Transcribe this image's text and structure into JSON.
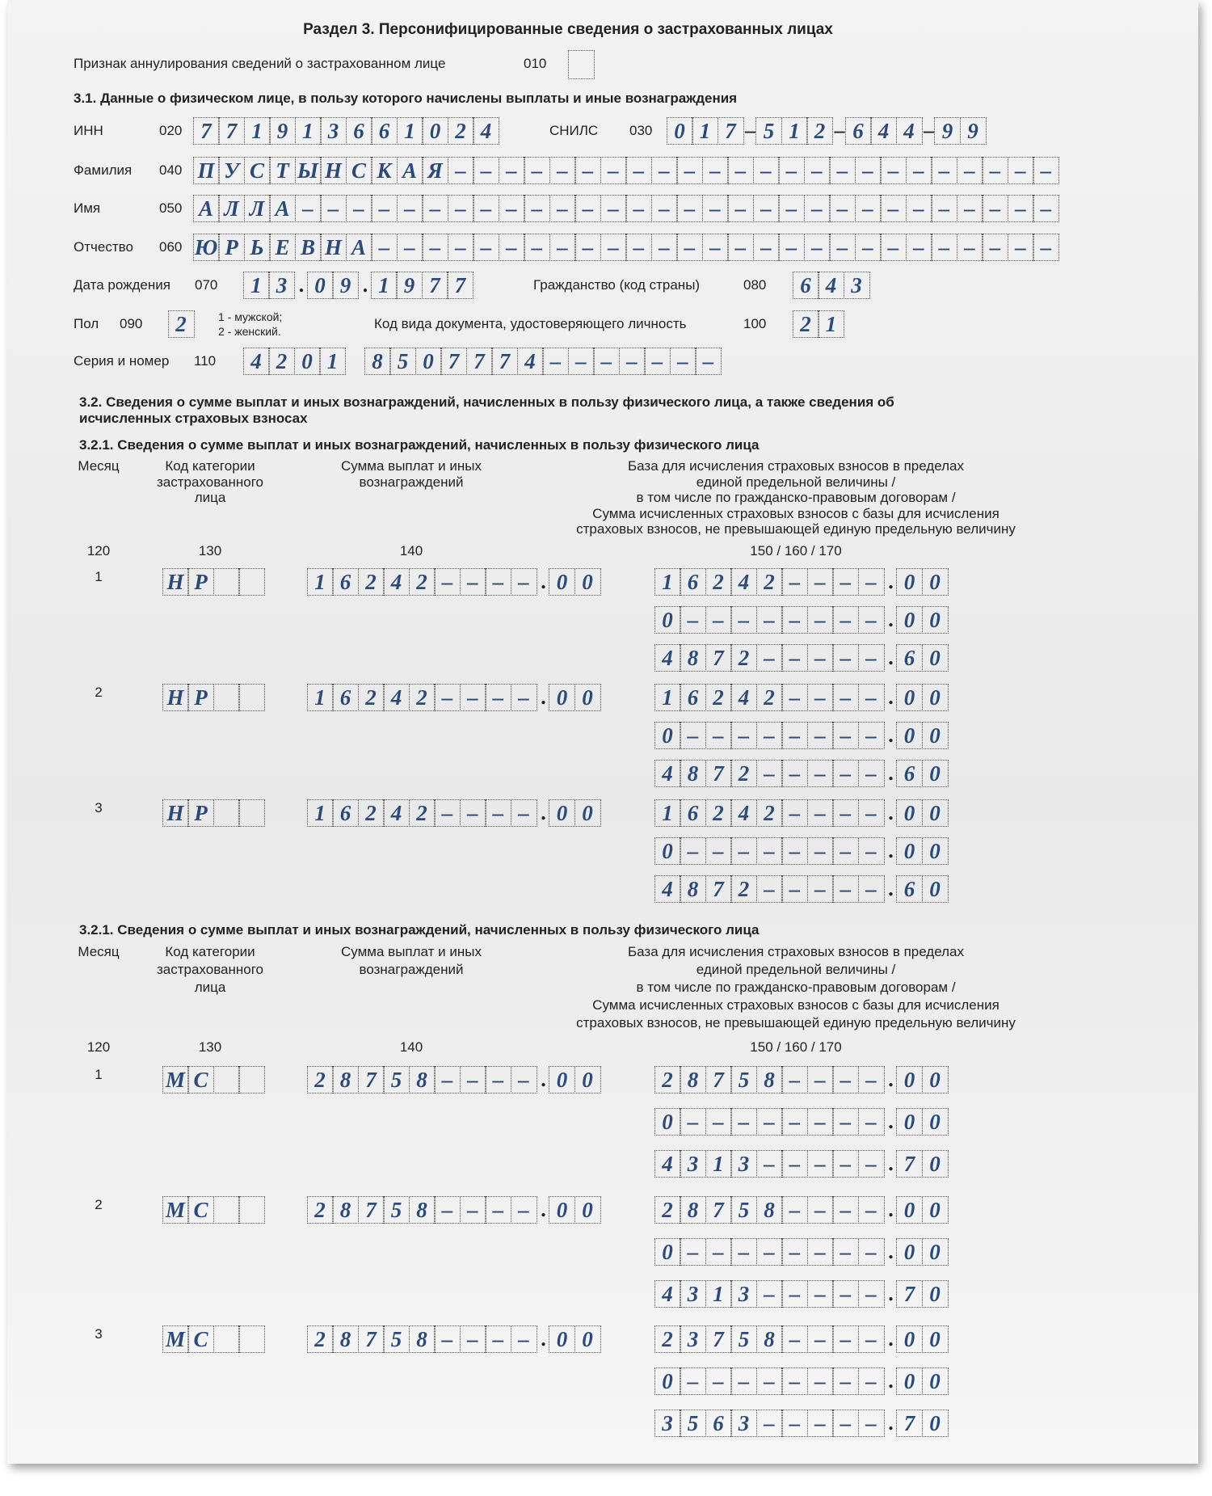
{
  "header": {
    "title": "Раздел 3. Персонифицированные сведения о застрахованных лицах"
  },
  "annulment": {
    "label": "Признак аннулирования сведений о застрахованном лице",
    "code": "010"
  },
  "section_3_1": {
    "heading": "3.1. Данные о физическом лице, в пользу которого начислены выплаты и иные вознаграждения",
    "fields": [
      {
        "label": "ИНН",
        "code": "020",
        "value": "771913661024"
      },
      {
        "label": "СНИЛС",
        "code": "030",
        "value": "017-512-644-99"
      },
      {
        "label": "Фамилия",
        "code": "040",
        "value": "ПУСТЫНСКАЯ"
      },
      {
        "label": "Имя",
        "code": "050",
        "value": "АЛЛА"
      },
      {
        "label": "Отчество",
        "code": "060",
        "value": "ЮРЬЕВНА"
      },
      {
        "label": "Дата рождения",
        "code": "070",
        "value": "13.09.1977"
      },
      {
        "label": "Гражданство (код страны)",
        "code": "080",
        "value": "643"
      },
      {
        "label": "Пол",
        "code": "090",
        "value": "2",
        "note": [
          "1 - мужской;",
          "2 - женский."
        ]
      },
      {
        "label": "Код вида документа, удостоверяющего личность",
        "code": "100",
        "value": "21"
      },
      {
        "label": "Серия и номер",
        "code": "110",
        "value": "4201 8507774"
      }
    ]
  },
  "section_3_2": {
    "heading": [
      "3.2. Сведения о сумме выплат и иных вознаграждений, начисленных в пользу физического лица, а также сведения об",
      "исчисленных страховых взносах"
    ],
    "blocks": [
      {
        "heading": "3.2.1. Сведения о сумме выплат и иных вознаграждений, начисленных в пользу физического лица",
        "columns": [
          {
            "title": [
              "Месяц"
            ],
            "code": "120"
          },
          {
            "title": [
              "Код категории",
              "застрахованного",
              "лица"
            ],
            "code": "130"
          },
          {
            "title": [
              "Сумма выплат и иных",
              "вознаграждений"
            ],
            "code": "140"
          },
          {
            "title": [
              "База для исчисления страховых взносов в пределах",
              "единой предельной величины /",
              "в том числе по гражданско-правовым договорам /",
              "Сумма исчисленных страховых взносов с базы для исчисления",
              "страховых взносов, не превышающей единую предельную величину"
            ],
            "code": "150 / 160 / 170"
          }
        ],
        "rows": [
          {
            "month": 1,
            "category": "НР",
            "sum": "16242.00",
            "base": [
              "16242.00",
              "0.00",
              "4872.60"
            ]
          },
          {
            "month": 2,
            "category": "НР",
            "sum": "16242.00",
            "base": [
              "16242.00",
              "0.00",
              "4872.60"
            ]
          },
          {
            "month": 3,
            "category": "НР",
            "sum": "16242.00",
            "base": [
              "16242.00",
              "0.00",
              "4872.60"
            ]
          }
        ]
      },
      {
        "heading": "3.2.1. Сведения о сумме выплат и иных вознаграждений, начисленных в пользу физического лица",
        "columns": [
          {
            "title": [
              "Месяц"
            ],
            "code": "120"
          },
          {
            "title": [
              "Код категории",
              "застрахованного",
              "лица"
            ],
            "code": "130"
          },
          {
            "title": [
              "Сумма выплат и иных",
              "вознаграждений"
            ],
            "code": "140"
          },
          {
            "title": [
              "База для исчисления страховых взносов в пределах",
              "единой предельной величины /",
              "в том числе по гражданско-правовым договорам /",
              "Сумма исчисленных страховых взносов с базы для исчисления",
              "страховых взносов, не превышающей единую предельную величину"
            ],
            "code": "150 / 160 / 170"
          }
        ],
        "rows": [
          {
            "month": 1,
            "category": "МС",
            "sum": "28758.00",
            "base": [
              "28758.00",
              "0.00",
              "4313.70"
            ]
          },
          {
            "month": 2,
            "category": "МС",
            "sum": "28758.00",
            "base": [
              "28758.00",
              "0.00",
              "4313.70"
            ]
          },
          {
            "month": 3,
            "category": "МС",
            "sum": "28758.00",
            "base": [
              "23758.00",
              "0.00",
              "3563.70"
            ]
          }
        ]
      }
    ]
  }
}
